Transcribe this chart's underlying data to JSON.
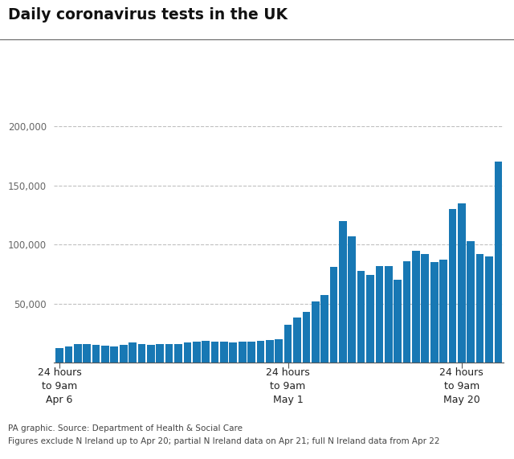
{
  "title": "Daily coronavirus tests in the UK",
  "bar_color": "#1878b4",
  "background_color": "#ffffff",
  "ylim": [
    0,
    210000
  ],
  "footnote_line1": "PA graphic. Source: Department of Health & Social Care",
  "footnote_line2": "Figures exclude N Ireland up to Apr 20; partial N Ireland data on Apr 21; full N Ireland data from Apr 22",
  "tick_labels": [
    {
      "index": 0,
      "label": "24 hours\nto 9am\nApr 6"
    },
    {
      "index": 25,
      "label": "24 hours\nto 9am\nMay 1"
    },
    {
      "index": 44,
      "label": "24 hours\nto 9am\nMay 20"
    }
  ],
  "values": [
    12000,
    14000,
    16000,
    15500,
    15000,
    14500,
    14000,
    15000,
    17000,
    16000,
    15000,
    15500,
    16000,
    15800,
    17000,
    18000,
    18500,
    18000,
    17500,
    17000,
    17500,
    18000,
    18500,
    19000,
    20000,
    32000,
    38000,
    43000,
    52000,
    57000,
    81000,
    120000,
    107000,
    78000,
    74000,
    82000,
    82000,
    70000,
    86000,
    95000,
    92000,
    85000,
    87000,
    130000,
    135000,
    103000,
    92000,
    90000,
    170000
  ]
}
